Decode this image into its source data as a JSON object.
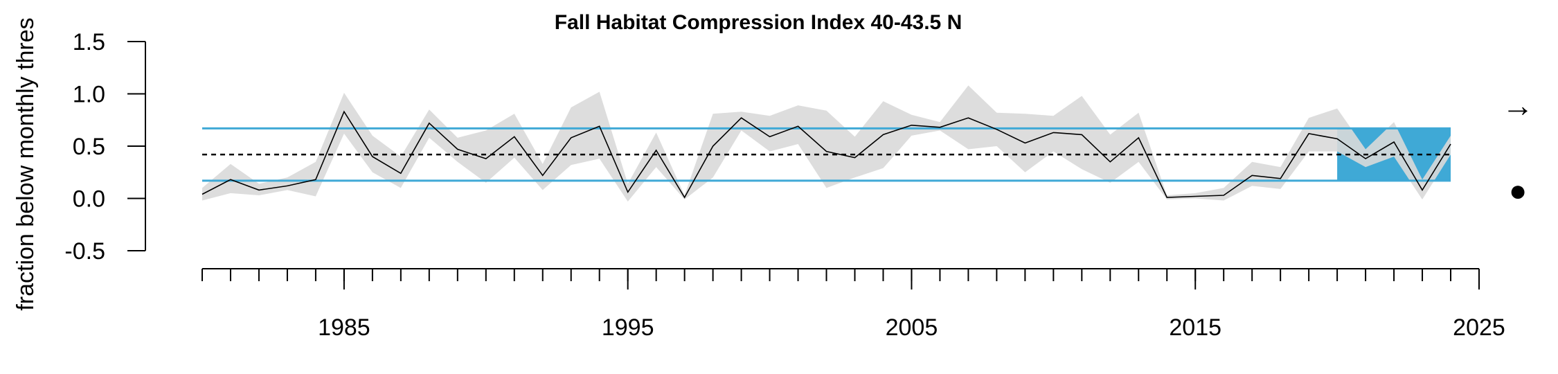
{
  "chart_data": {
    "type": "line",
    "title": "Fall Habitat Compression Index 40-43.5 N",
    "xlabel": "",
    "ylabel": "fraction below monthly thres",
    "xlim": [
      1980,
      2025
    ],
    "ylim": [
      -0.5,
      1.5
    ],
    "yticks": [
      {
        "value": -0.5,
        "label": "-0.5"
      },
      {
        "value": 0.0,
        "label": "0.0"
      },
      {
        "value": 0.5,
        "label": "0.5"
      },
      {
        "value": 1.0,
        "label": "1.0"
      },
      {
        "value": 1.5,
        "label": "1.5"
      }
    ],
    "xticks_major": [
      {
        "value": 1985,
        "label": "1985"
      },
      {
        "value": 1995,
        "label": "1995"
      },
      {
        "value": 2005,
        "label": "2005"
      },
      {
        "value": 2015,
        "label": "2015"
      },
      {
        "value": 2025,
        "label": "2025"
      }
    ],
    "minor_tick_start": 1980,
    "minor_tick_end": 2025,
    "mean": 0.42,
    "upper_sd": 0.67,
    "lower_sd": 0.17,
    "recent_window": [
      2020,
      2024
    ],
    "trend_arrow": "→",
    "status_marker": "●",
    "colors": {
      "sd_lines": "#3fa9d6",
      "recent_shade": "#3fa9d6",
      "ribbon": "#d9d9d9",
      "line": "#000000",
      "mean_line": "#000000"
    },
    "x": [
      1980,
      1981,
      1982,
      1983,
      1984,
      1985,
      1986,
      1987,
      1988,
      1989,
      1990,
      1991,
      1992,
      1993,
      1994,
      1995,
      1996,
      1997,
      1998,
      1999,
      2000,
      2001,
      2002,
      2003,
      2004,
      2005,
      2006,
      2007,
      2008,
      2009,
      2010,
      2011,
      2012,
      2013,
      2014,
      2015,
      2016,
      2017,
      2018,
      2019,
      2020,
      2021,
      2022,
      2023,
      2024
    ],
    "series": [
      {
        "values": [
          0.04,
          0.18,
          0.08,
          0.12,
          0.18,
          0.83,
          0.4,
          0.24,
          0.72,
          0.47,
          0.38,
          0.59,
          0.22,
          0.58,
          0.69,
          0.06,
          0.46,
          0.01,
          0.5,
          0.77,
          0.59,
          0.69,
          0.45,
          0.39,
          0.61,
          0.7,
          0.68,
          0.77,
          0.66,
          0.53,
          0.63,
          0.61,
          0.35,
          0.58,
          0.01,
          0.02,
          0.03,
          0.22,
          0.19,
          0.62,
          0.57,
          0.38,
          0.54,
          0.08,
          0.52
        ],
        "lower": [
          -0.02,
          0.05,
          0.03,
          0.08,
          0.02,
          0.62,
          0.25,
          0.1,
          0.58,
          0.35,
          0.15,
          0.39,
          0.08,
          0.32,
          0.38,
          -0.03,
          0.3,
          -0.01,
          0.2,
          0.65,
          0.45,
          0.52,
          0.1,
          0.2,
          0.29,
          0.6,
          0.65,
          0.47,
          0.5,
          0.25,
          0.45,
          0.28,
          0.15,
          0.35,
          -0.01,
          0.0,
          -0.02,
          0.12,
          0.09,
          0.45,
          0.45,
          0.3,
          0.4,
          -0.01,
          0.42
        ],
        "upper": [
          0.1,
          0.33,
          0.14,
          0.2,
          0.35,
          1.01,
          0.6,
          0.4,
          0.85,
          0.58,
          0.65,
          0.81,
          0.33,
          0.87,
          1.02,
          0.14,
          0.63,
          0.03,
          0.81,
          0.83,
          0.79,
          0.89,
          0.84,
          0.59,
          0.93,
          0.8,
          0.73,
          1.08,
          0.82,
          0.81,
          0.79,
          0.98,
          0.61,
          0.82,
          0.03,
          0.05,
          0.1,
          0.35,
          0.3,
          0.77,
          0.86,
          0.47,
          0.73,
          0.18,
          0.6
        ]
      }
    ]
  }
}
